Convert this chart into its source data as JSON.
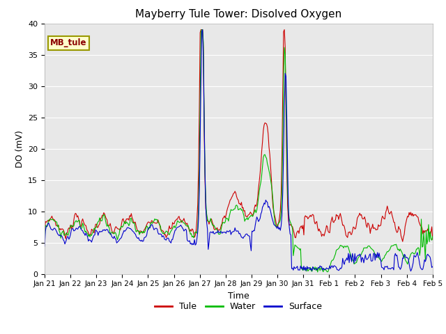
{
  "title": "Mayberry Tule Tower: Disolved Oxygen",
  "ylabel": "DO (mV)",
  "xlabel": "Time",
  "annotation": "MB_tule",
  "legend": [
    "Tule",
    "Water",
    "Surface"
  ],
  "colors": {
    "Tule": "#cc0000",
    "Water": "#00bb00",
    "Surface": "#0000cc"
  },
  "ylim": [
    0,
    40
  ],
  "bg_color": "#e8e8e8",
  "fig_bg": "#ffffff",
  "xtick_labels": [
    "Jan 21",
    "Jan 22",
    "Jan 23",
    "Jan 24",
    "Jan 25",
    "Jan 26",
    "Jan 27",
    "Jan 28",
    "Jan 29",
    "Jan 30",
    "Jan 31",
    "Feb 1",
    "Feb 2",
    "Feb 3",
    "Feb 4",
    "Feb 5"
  ],
  "num_points": 480,
  "seed": 7
}
